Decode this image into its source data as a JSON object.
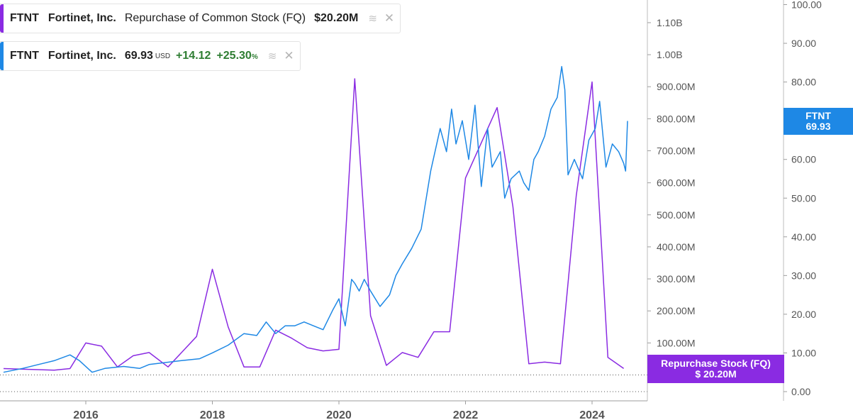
{
  "legend": {
    "repurchase": {
      "ticker": "FTNT",
      "company": "Fortinet, Inc.",
      "metric": "Repurchase of Common Stock (FQ)",
      "value": "$20.20M",
      "color": "#8a2be2"
    },
    "price": {
      "ticker": "FTNT",
      "company": "Fortinet, Inc.",
      "value": "69.93",
      "unit": "USD",
      "change": "+14.12",
      "change_pct": "+25.30",
      "pct_sign": "%",
      "color": "#1e88e5"
    }
  },
  "tags": {
    "price_ticker": "FTNT",
    "price_value": "69.93",
    "repurchase_label": "Repurchase Stock (FQ)",
    "repurchase_value": "$ 20.20M"
  },
  "chart_data": {
    "type": "line",
    "x_ticks": [
      "2016",
      "2018",
      "2020",
      "2022",
      "2024"
    ],
    "left_axis": {
      "ticks": [
        "0.00",
        "100.00M",
        "200.00M",
        "300.00M",
        "400.00M",
        "500.00M",
        "600.00M",
        "700.00M",
        "800.00M",
        "900.00M",
        "1.00B",
        "1.10B"
      ],
      "values": [
        0,
        100,
        200,
        300,
        400,
        500,
        600,
        700,
        800,
        900,
        1000,
        1100
      ],
      "unit": "M USD",
      "range": [
        -20,
        1200
      ]
    },
    "right_axis": {
      "ticks": [
        "0.00",
        "10.00",
        "20.00",
        "30.00",
        "40.00",
        "50.00",
        "60.00",
        "70.00",
        "80.00",
        "90.00",
        "100.00"
      ],
      "values": [
        0,
        10,
        20,
        30,
        40,
        50,
        60,
        70,
        80,
        90,
        100
      ],
      "range": [
        0,
        100
      ]
    },
    "series": [
      {
        "name": "Repurchase of Common Stock (FQ)",
        "axis": "left",
        "color": "#8a2be2",
        "x": [
          2014.7,
          2015.5,
          2015.75,
          2016.0,
          2016.25,
          2016.5,
          2016.75,
          2017.0,
          2017.3,
          2017.75,
          2018.0,
          2018.25,
          2018.5,
          2018.75,
          2019.0,
          2019.25,
          2019.5,
          2019.75,
          2020.0,
          2020.25,
          2020.5,
          2020.75,
          2021.0,
          2021.25,
          2021.5,
          2021.75,
          2022.0,
          2022.5,
          2022.75,
          2023.0,
          2023.25,
          2023.5,
          2023.75,
          2024.0,
          2024.25,
          2024.5
        ],
        "values": [
          20,
          15,
          20,
          100,
          90,
          25,
          60,
          70,
          25,
          120,
          330,
          150,
          25,
          25,
          140,
          115,
          85,
          75,
          80,
          925,
          185,
          30,
          70,
          55,
          135,
          135,
          615,
          835,
          525,
          35,
          40,
          35,
          560,
          915,
          55,
          20.2
        ]
      },
      {
        "name": "FTNT",
        "axis": "right",
        "color": "#1e88e5",
        "x": [
          2014.7,
          2015.0,
          2015.25,
          2015.5,
          2015.75,
          2015.9,
          2016.1,
          2016.3,
          2016.6,
          2016.85,
          2017.0,
          2017.5,
          2017.8,
          2018.0,
          2018.25,
          2018.5,
          2018.7,
          2018.85,
          2019.0,
          2019.15,
          2019.3,
          2019.45,
          2019.6,
          2019.75,
          2019.9,
          2020.0,
          2020.1,
          2020.2,
          2020.25,
          2020.32,
          2020.4,
          2020.5,
          2020.65,
          2020.8,
          2020.9,
          2021.0,
          2021.15,
          2021.3,
          2021.45,
          2021.6,
          2021.7,
          2021.78,
          2021.85,
          2021.95,
          2022.05,
          2022.15,
          2022.25,
          2022.35,
          2022.42,
          2022.55,
          2022.62,
          2022.72,
          2022.85,
          2022.92,
          2023.0,
          2023.08,
          2023.15,
          2023.25,
          2023.35,
          2023.45,
          2023.52,
          2023.57,
          2023.62,
          2023.72,
          2023.85,
          2023.95,
          2024.05,
          2024.12,
          2024.22,
          2024.32,
          2024.42,
          2024.5,
          2024.53,
          2024.56
        ],
        "values": [
          5,
          6,
          7,
          8,
          9.5,
          8,
          5,
          6,
          6.5,
          6,
          7,
          8,
          8.5,
          10,
          12,
          15,
          14.5,
          18,
          15,
          17,
          17,
          18,
          17,
          16,
          21,
          24,
          17,
          29,
          28,
          26,
          29,
          26,
          22,
          25,
          30,
          33,
          37,
          42,
          57,
          68,
          62,
          73,
          64,
          70,
          60,
          74,
          53,
          68,
          58,
          62,
          50,
          55,
          57,
          54,
          52,
          60,
          62,
          66,
          73,
          76,
          84,
          78,
          56,
          60,
          55,
          65,
          68,
          75,
          58,
          64,
          62,
          59,
          57,
          69.93
        ]
      }
    ]
  }
}
